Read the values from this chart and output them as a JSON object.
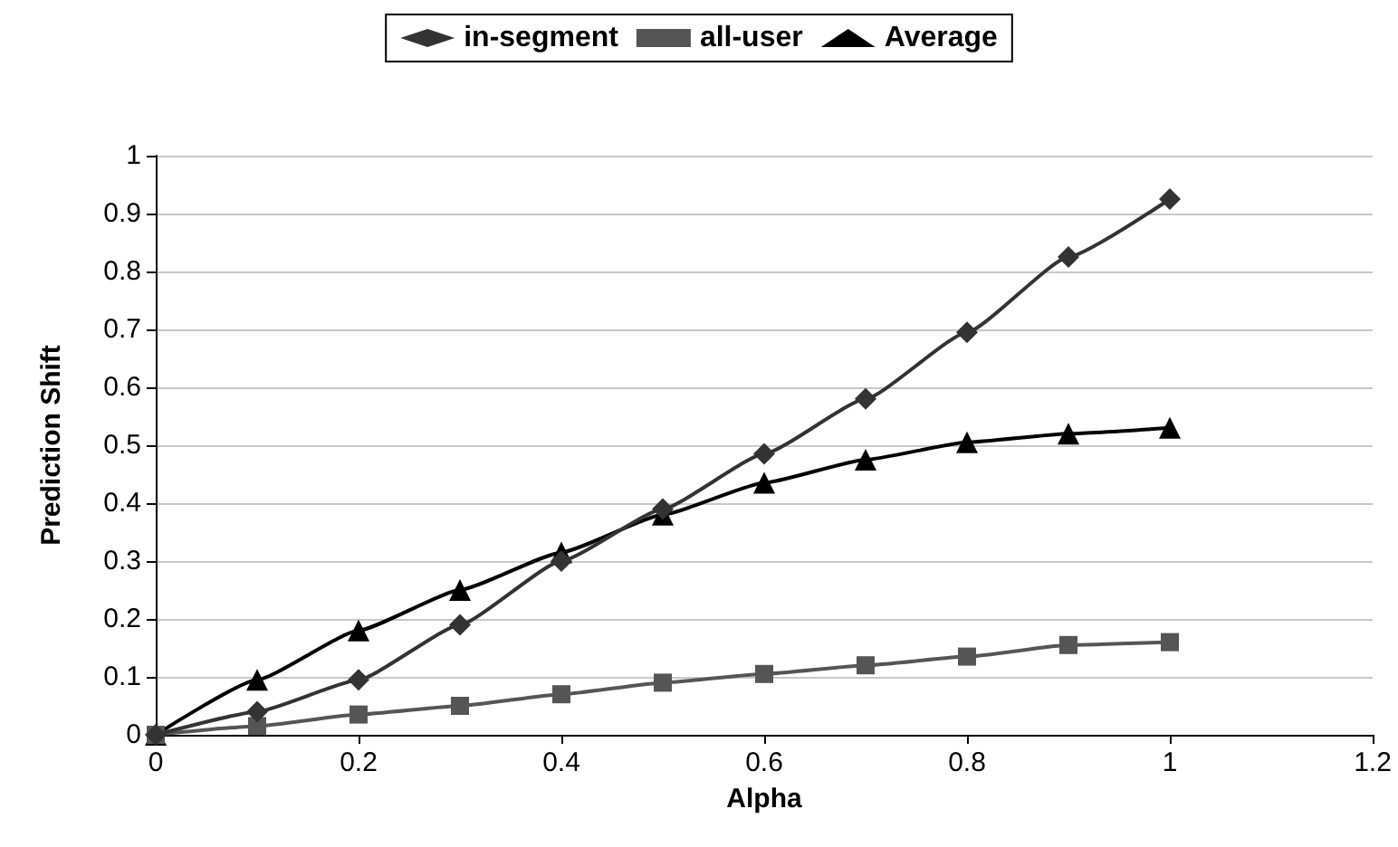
{
  "chart_data": {
    "type": "line",
    "xlabel": "Alpha",
    "ylabel": "Prediction Shift",
    "x": [
      0,
      0.1,
      0.2,
      0.3,
      0.4,
      0.5,
      0.6,
      0.7,
      0.8,
      0.9,
      1
    ],
    "series": [
      {
        "name": "in-segment",
        "color": "#333333",
        "marker": "diamond",
        "values": [
          0,
          0.04,
          0.095,
          0.19,
          0.3,
          0.39,
          0.485,
          0.58,
          0.695,
          0.825,
          0.925
        ]
      },
      {
        "name": "all-user",
        "color": "#555555",
        "marker": "square",
        "values": [
          0,
          0.015,
          0.035,
          0.05,
          0.07,
          0.09,
          0.105,
          0.12,
          0.135,
          0.155,
          0.16
        ]
      },
      {
        "name": "Average",
        "color": "#000000",
        "marker": "triangle",
        "values": [
          0,
          0.095,
          0.18,
          0.25,
          0.315,
          0.38,
          0.435,
          0.475,
          0.505,
          0.52,
          0.53
        ]
      }
    ],
    "xlim": [
      0,
      1.2
    ],
    "xticks": [
      0,
      0.2,
      0.4,
      0.6,
      0.8,
      1,
      1.2
    ],
    "ylim": [
      0,
      1
    ],
    "yticks": [
      0,
      0.1,
      0.2,
      0.3,
      0.4,
      0.5,
      0.6,
      0.7,
      0.8,
      0.9,
      1
    ],
    "grid": "y",
    "legend": "top",
    "line_style": "solid"
  }
}
